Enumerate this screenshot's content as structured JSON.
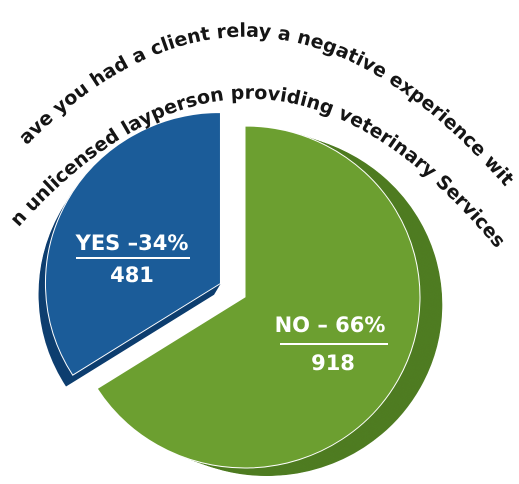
{
  "chart_data": {
    "type": "pie",
    "title": [
      "Have you had a client relay a negative experience with",
      "an unlicensed layperson providing veterinary Services?"
    ],
    "values": [
      34,
      66
    ],
    "value_labels": [
      "YES –34%",
      "NO – 66%"
    ],
    "counts": [
      481,
      918
    ],
    "colors": [
      "#1b5c99",
      "#6c9f30"
    ],
    "side_colors": [
      "#0f3f70",
      "#4f7c22"
    ]
  }
}
